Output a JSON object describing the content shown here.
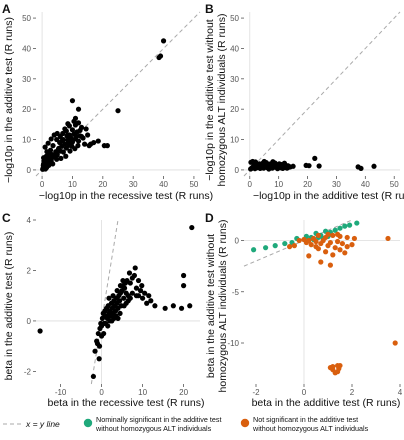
{
  "legend": {
    "xy_line": "x = y line",
    "green_line1": "Nominally significant in the additive test",
    "green_line2": "without homozygous ALT individuals",
    "orange_line1": "Not significant in the additive test",
    "orange_line2": "without homozygous ALT individuals",
    "colors": {
      "green": "#1fa97b",
      "orange": "#d95f0e",
      "line": "#aaaaaa"
    }
  },
  "chart_data": [
    {
      "panel": "A",
      "type": "scatter",
      "xlabel": "−log10p in the recessive test (R runs)",
      "ylabel": "−log10p in the additive test (R runs)",
      "xlim": [
        -2,
        52
      ],
      "ylim": [
        -2,
        52
      ],
      "xticks": [
        0,
        10,
        20,
        30,
        40,
        50
      ],
      "yticks": [
        0,
        10,
        20,
        30,
        40,
        50
      ],
      "reference_line": "x=y",
      "points": [
        [
          0.3,
          0.5
        ],
        [
          0.8,
          1.2
        ],
        [
          1.2,
          2.5
        ],
        [
          1.8,
          3.2
        ],
        [
          2.5,
          4.0
        ],
        [
          3.2,
          5.1
        ],
        [
          3.8,
          4.2
        ],
        [
          4.5,
          6.0
        ],
        [
          5.0,
          5.0
        ],
        [
          5.5,
          7.1
        ],
        [
          6.0,
          6.2
        ],
        [
          6.5,
          7.8
        ],
        [
          7.0,
          5.9
        ],
        [
          7.5,
          8.5
        ],
        [
          8.0,
          7.2
        ],
        [
          8.5,
          9.8
        ],
        [
          9.0,
          8.1
        ],
        [
          9.5,
          10.5
        ],
        [
          10.0,
          9.2
        ],
        [
          10.5,
          11.8
        ],
        [
          11.0,
          10.2
        ],
        [
          11.5,
          12.5
        ],
        [
          12.0,
          9.5
        ],
        [
          12.5,
          13.0
        ],
        [
          13.0,
          11.0
        ],
        [
          13.5,
          10.5
        ],
        [
          14.0,
          8.5
        ],
        [
          1.0,
          7.5
        ],
        [
          2.0,
          8.8
        ],
        [
          3.0,
          10.2
        ],
        [
          4.0,
          11.5
        ],
        [
          5.0,
          12.0
        ],
        [
          6.0,
          11.0
        ],
        [
          7.0,
          10.0
        ],
        [
          8.0,
          12.8
        ],
        [
          9.0,
          14.5
        ],
        [
          10.0,
          13.2
        ],
        [
          11.0,
          14.8
        ],
        [
          12.0,
          15.5
        ],
        [
          14.5,
          13.5
        ],
        [
          15.0,
          11.5
        ],
        [
          16.0,
          8.5
        ],
        [
          17.0,
          9.0
        ],
        [
          18.5,
          9.5
        ],
        [
          20.5,
          8.0
        ],
        [
          21.5,
          8.0
        ],
        [
          0.5,
          2.0
        ],
        [
          1.5,
          0.8
        ],
        [
          2.2,
          1.5
        ],
        [
          3.5,
          2.0
        ],
        [
          4.8,
          3.5
        ],
        [
          6.2,
          3.8
        ],
        [
          7.8,
          4.5
        ],
        [
          9.2,
          6.2
        ],
        [
          10.8,
          7.0
        ],
        [
          11.8,
          8.0
        ],
        [
          0.2,
          0.2
        ],
        [
          0.6,
          3.0
        ],
        [
          1.4,
          4.5
        ],
        [
          2.8,
          6.5
        ],
        [
          3.6,
          8.0
        ],
        [
          5.8,
          9.0
        ],
        [
          6.8,
          12.0
        ],
        [
          0.4,
          1.5
        ],
        [
          1.1,
          0.3
        ],
        [
          2.4,
          2.8
        ],
        [
          4.2,
          4.8
        ],
        [
          5.4,
          6.8
        ],
        [
          8.8,
          9.2
        ],
        [
          9.8,
          7.8
        ],
        [
          6.5,
          9.5
        ],
        [
          4.8,
          10.0
        ],
        [
          11.2,
          11.0
        ],
        [
          10.5,
          16.0
        ],
        [
          11.0,
          17.0
        ],
        [
          9.0,
          11.5
        ],
        [
          12.5,
          11.2
        ],
        [
          2.0,
          5.5
        ],
        [
          7.5,
          13.5
        ],
        [
          8.2,
          11.2
        ],
        [
          8.5,
          15.2
        ],
        [
          10.0,
          22.8
        ],
        [
          15.5,
          8.0
        ],
        [
          12.0,
          20.0
        ],
        [
          25.0,
          19.5
        ],
        [
          38.5,
          37.0
        ],
        [
          39.0,
          37.5
        ],
        [
          40.0,
          42.5
        ],
        [
          0.5,
          4.0
        ],
        [
          1.6,
          6.0
        ],
        [
          3.0,
          3.0
        ],
        [
          13.0,
          14.0
        ]
      ]
    },
    {
      "panel": "B",
      "type": "scatter",
      "xlabel": "−log10p in the additive test (R runs)",
      "ylabel": "−log10p in the additive test without homozygous ALT individuals (R runs)",
      "xlim": [
        -2,
        52
      ],
      "ylim": [
        -2,
        52
      ],
      "xticks": [
        0,
        10,
        20,
        30,
        40,
        50
      ],
      "yticks": [
        0,
        10,
        20,
        30,
        40,
        50
      ],
      "reference_line": "x=y",
      "points": [
        [
          0.3,
          0.3
        ],
        [
          0.6,
          0.5
        ],
        [
          0.9,
          0.8
        ],
        [
          1.2,
          1.0
        ],
        [
          1.5,
          1.6
        ],
        [
          1.8,
          0.4
        ],
        [
          2.1,
          1.3
        ],
        [
          2.4,
          0.7
        ],
        [
          2.7,
          1.8
        ],
        [
          3.0,
          0.9
        ],
        [
          3.3,
          2.0
        ],
        [
          3.6,
          0.5
        ],
        [
          3.9,
          1.4
        ],
        [
          4.2,
          1.0
        ],
        [
          4.5,
          2.2
        ],
        [
          4.8,
          0.6
        ],
        [
          5.1,
          1.7
        ],
        [
          5.4,
          1.1
        ],
        [
          5.7,
          2.4
        ],
        [
          6.0,
          0.8
        ],
        [
          6.3,
          1.5
        ],
        [
          6.6,
          0.3
        ],
        [
          6.9,
          1.9
        ],
        [
          7.2,
          1.2
        ],
        [
          7.5,
          2.1
        ],
        [
          7.8,
          0.6
        ],
        [
          8.1,
          1.4
        ],
        [
          8.4,
          0.9
        ],
        [
          8.7,
          2.3
        ],
        [
          9.0,
          1.0
        ],
        [
          9.3,
          1.6
        ],
        [
          9.6,
          0.4
        ],
        [
          9.9,
          1.3
        ],
        [
          10.2,
          2.0
        ],
        [
          10.5,
          0.7
        ],
        [
          10.8,
          1.8
        ],
        [
          11.1,
          1.1
        ],
        [
          11.4,
          0.5
        ],
        [
          11.7,
          1.5
        ],
        [
          12.0,
          2.2
        ],
        [
          12.3,
          0.8
        ],
        [
          12.6,
          1.2
        ],
        [
          12.9,
          0.6
        ],
        [
          13.2,
          1.4
        ],
        [
          13.5,
          0.9
        ],
        [
          14.0,
          1.0
        ],
        [
          15.0,
          1.2
        ],
        [
          0.4,
          2.5
        ],
        [
          1.0,
          2.8
        ],
        [
          2.0,
          2.6
        ],
        [
          5.0,
          2.8
        ],
        [
          8.0,
          2.7
        ],
        [
          19.5,
          1.5
        ],
        [
          20.5,
          1.4
        ],
        [
          22.5,
          3.8
        ],
        [
          24.0,
          1.3
        ],
        [
          37.5,
          1.0
        ],
        [
          38.5,
          0.5
        ],
        [
          43.0,
          1.2
        ]
      ]
    },
    {
      "panel": "C",
      "type": "scatter",
      "xlabel": "beta in the recessive test (R runs)",
      "ylabel": "beta in the additive test (R runs)",
      "xlim": [
        -16,
        24
      ],
      "ylim": [
        -2.5,
        4
      ],
      "xticks": [
        -10,
        0,
        10,
        20
      ],
      "yticks": [
        -2,
        0,
        2,
        4
      ],
      "reference_line": "x=y",
      "points": [
        [
          -15.0,
          -0.4
        ],
        [
          -2.0,
          -2.2
        ],
        [
          -1.6,
          -1.2
        ],
        [
          -1.2,
          -0.8
        ],
        [
          -1.0,
          -0.9
        ],
        [
          -0.8,
          -0.5
        ],
        [
          -0.6,
          -1.5
        ],
        [
          -0.4,
          -0.3
        ],
        [
          -0.2,
          -0.1
        ],
        [
          0.0,
          -0.2
        ],
        [
          0.2,
          0.1
        ],
        [
          0.4,
          0.3
        ],
        [
          0.6,
          -0.1
        ],
        [
          0.8,
          0.4
        ],
        [
          1.0,
          0.2
        ],
        [
          1.2,
          0.5
        ],
        [
          1.4,
          0.1
        ],
        [
          1.6,
          0.6
        ],
        [
          1.8,
          0.3
        ],
        [
          2.0,
          0.4
        ],
        [
          2.2,
          0.2
        ],
        [
          2.4,
          0.7
        ],
        [
          2.6,
          0.5
        ],
        [
          2.8,
          0.3
        ],
        [
          3.0,
          0.8
        ],
        [
          3.2,
          0.6
        ],
        [
          3.4,
          0.4
        ],
        [
          3.6,
          0.9
        ],
        [
          3.8,
          0.7
        ],
        [
          4.0,
          0.5
        ],
        [
          4.2,
          1.0
        ],
        [
          4.4,
          0.8
        ],
        [
          4.6,
          1.1
        ],
        [
          4.8,
          0.6
        ],
        [
          5.0,
          1.2
        ],
        [
          5.2,
          1.4
        ],
        [
          5.4,
          0.9
        ],
        [
          5.6,
          1.3
        ],
        [
          5.8,
          1.5
        ],
        [
          6.0,
          1.1
        ],
        [
          6.2,
          1.6
        ],
        [
          6.5,
          1.0
        ],
        [
          7.0,
          1.5
        ],
        [
          7.5,
          1.7
        ],
        [
          8.0,
          1.8
        ],
        [
          8.5,
          1.0
        ],
        [
          9.0,
          1.6
        ],
        [
          9.5,
          1.2
        ],
        [
          10.0,
          0.9
        ],
        [
          11.0,
          0.7
        ],
        [
          12.0,
          0.8
        ],
        [
          13.0,
          0.6
        ],
        [
          15.5,
          0.5
        ],
        [
          17.5,
          0.6
        ],
        [
          19.5,
          0.5
        ],
        [
          20.0,
          1.4
        ],
        [
          21.5,
          0.6
        ],
        [
          22.0,
          3.7
        ],
        [
          20.0,
          1.8
        ],
        [
          0.5,
          -0.5
        ],
        [
          1.5,
          -0.2
        ],
        [
          2.5,
          0.0
        ],
        [
          3.5,
          0.2
        ],
        [
          4.5,
          0.3
        ],
        [
          5.5,
          0.6
        ],
        [
          6.5,
          0.8
        ],
        [
          7.5,
          1.1
        ],
        [
          8.5,
          1.3
        ],
        [
          6.0,
          0.7
        ],
        [
          4.0,
          0.1
        ],
        [
          3.0,
          0.1
        ],
        [
          2.0,
          0.0
        ],
        [
          1.0,
          -0.1
        ],
        [
          0.0,
          -0.6
        ],
        [
          -0.5,
          -1.0
        ],
        [
          7.0,
          0.9
        ],
        [
          9.0,
          1.0
        ],
        [
          10.5,
          1.1
        ],
        [
          1.8,
          0.9
        ],
        [
          2.8,
          1.0
        ],
        [
          3.8,
          1.2
        ],
        [
          4.6,
          1.4
        ],
        [
          5.2,
          1.6
        ],
        [
          6.8,
          1.9
        ],
        [
          8.2,
          2.1
        ],
        [
          9.8,
          1.4
        ],
        [
          11.5,
          1.0
        ]
      ]
    },
    {
      "panel": "D",
      "type": "scatter",
      "xlabel": "beta in the additive test (R runs)",
      "ylabel": "beta in the additive test without homozygous ALT individuals (R runs)",
      "xlim": [
        -2.5,
        4
      ],
      "ylim": [
        -14,
        2
      ],
      "xticks": [
        -2,
        0,
        2,
        4
      ],
      "yticks": [
        0,
        -5,
        -10
      ],
      "reference_line": "x=y",
      "series": [
        {
          "name": "Nominally significant in the additive test without homozygous ALT individuals",
          "color": "#1fa97b",
          "points": [
            [
              -2.1,
              -0.9
            ],
            [
              -1.6,
              -0.7
            ],
            [
              -1.2,
              -0.5
            ],
            [
              -0.8,
              -0.3
            ],
            [
              -0.5,
              -0.2
            ],
            [
              -0.3,
              0.2
            ],
            [
              0.1,
              0.4
            ],
            [
              0.3,
              0.3
            ],
            [
              0.5,
              0.7
            ],
            [
              0.7,
              0.5
            ],
            [
              0.9,
              0.9
            ],
            [
              1.1,
              0.8
            ],
            [
              1.3,
              1.0
            ],
            [
              1.5,
              1.2
            ],
            [
              1.7,
              1.4
            ],
            [
              1.9,
              1.5
            ],
            [
              2.2,
              1.7
            ],
            [
              0.6,
              0.3
            ],
            [
              0.4,
              0.1
            ],
            [
              0.8,
              0.2
            ],
            [
              1.0,
              0.4
            ]
          ]
        },
        {
          "name": "Not significant in the additive test without homozygous ALT individuals",
          "color": "#d95f0e",
          "points": [
            [
              -0.6,
              -0.6
            ],
            [
              -0.4,
              -0.5
            ],
            [
              -0.2,
              0.0
            ],
            [
              0.0,
              0.1
            ],
            [
              0.1,
              -0.2
            ],
            [
              0.2,
              0.0
            ],
            [
              0.3,
              -0.4
            ],
            [
              0.4,
              0.2
            ],
            [
              0.5,
              -0.1
            ],
            [
              0.6,
              -0.8
            ],
            [
              0.7,
              -0.3
            ],
            [
              0.8,
              0.0
            ],
            [
              0.9,
              -1.1
            ],
            [
              1.0,
              -0.5
            ],
            [
              1.1,
              -0.2
            ],
            [
              1.2,
              -1.4
            ],
            [
              1.3,
              -0.7
            ],
            [
              1.4,
              -0.1
            ],
            [
              1.5,
              -0.9
            ],
            [
              1.6,
              -0.3
            ],
            [
              1.7,
              -1.2
            ],
            [
              1.8,
              0.3
            ],
            [
              2.0,
              -0.4
            ],
            [
              0.2,
              -1.5
            ],
            [
              0.7,
              -2.1
            ],
            [
              1.1,
              -2.4
            ],
            [
              0.5,
              -0.6
            ],
            [
              0.9,
              0.3
            ],
            [
              1.2,
              0.5
            ],
            [
              1.4,
              0.6
            ],
            [
              0.6,
              0.5
            ],
            [
              1.5,
              0.4
            ],
            [
              1.0,
              0.6
            ],
            [
              1.8,
              -0.6
            ],
            [
              2.1,
              0.2
            ],
            [
              3.5,
              0.2
            ],
            [
              1.1,
              -12.4
            ],
            [
              1.2,
              -12.6
            ],
            [
              1.3,
              -12.9
            ],
            [
              1.4,
              -12.8
            ],
            [
              1.5,
              -12.2
            ],
            [
              1.45,
              -12.5
            ],
            [
              1.2,
              -12.3
            ],
            [
              1.4,
              -12.2
            ],
            [
              3.8,
              -10.0
            ]
          ]
        }
      ]
    }
  ]
}
